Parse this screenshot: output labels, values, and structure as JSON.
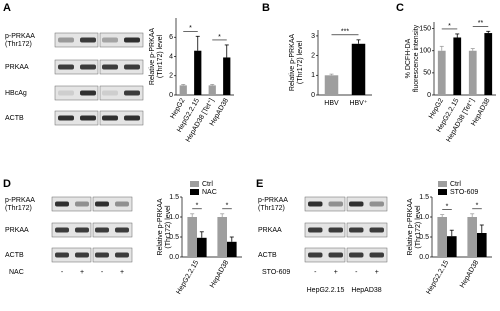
{
  "chart_data": [
    {
      "type": "bar",
      "panel": "A",
      "ylabel": [
        "Relative p-PRKAA",
        "(Thr172) level"
      ],
      "categories": [
        "HepG2",
        "HepG2.2.15",
        "HepAD38 [Tet⁺]",
        "HepAD38"
      ],
      "series": [
        {
          "colors": [
            "#9e9e9e",
            "#000000",
            "#9e9e9e",
            "#000000"
          ],
          "values": [
            1,
            4.6,
            1,
            3.9
          ],
          "errors": [
            0.1,
            1.5,
            0.1,
            1.3
          ]
        }
      ],
      "ylim": [
        0,
        8
      ],
      "yticks": [
        0,
        2,
        4,
        6
      ],
      "annotations": [
        "*",
        "*"
      ]
    },
    {
      "type": "bar",
      "panel": "B",
      "ylabel": [
        "Relative p-PRKAA",
        "(Thr172) level"
      ],
      "categories": [
        "HBV",
        "HBV⁺"
      ],
      "series": [
        {
          "colors": [
            "#9e9e9e",
            "#000000"
          ],
          "values": [
            1,
            2.6
          ],
          "errors": [
            0.06,
            0.2
          ]
        }
      ],
      "ylim": [
        0,
        3.3
      ],
      "yticks": [
        0,
        1,
        2,
        3
      ],
      "annotations": [
        "***"
      ]
    },
    {
      "type": "bar",
      "panel": "C",
      "ylabel": [
        "% DCFH-DA",
        "fluorescence intensity"
      ],
      "categories": [
        "HepG2",
        "HepG2.2.15",
        "HepAD38 [Tet⁺]",
        "HepAD38"
      ],
      "series": [
        {
          "colors": [
            "#9e9e9e",
            "#000000",
            "#9e9e9e",
            "#000000"
          ],
          "values": [
            100,
            130,
            100,
            140
          ],
          "errors": [
            10,
            8,
            5,
            4
          ]
        }
      ],
      "ylim": [
        0,
        165
      ],
      "yticks": [
        0,
        50,
        100,
        150
      ],
      "annotations": [
        "*",
        "**"
      ]
    },
    {
      "type": "bar",
      "panel": "D",
      "ylabel": [
        "Relative p-PRKAA",
        "(Thr172) level"
      ],
      "categories": [
        "HepG2.2.15",
        "HepAD38"
      ],
      "series": [
        {
          "name": "Ctrl",
          "color": "#9e9e9e",
          "values": [
            1,
            1
          ],
          "errors": [
            0.08,
            0.08
          ]
        },
        {
          "name": "NAC",
          "color": "#000000",
          "values": [
            0.48,
            0.38
          ],
          "errors": [
            0.15,
            0.12
          ]
        }
      ],
      "ylim": [
        0,
        1.5
      ],
      "yticks": [
        {
          "value": 0,
          "label": "0.0"
        },
        {
          "value": 0.5,
          "label": "0.5"
        },
        {
          "value": 1,
          "label": "1.0"
        },
        {
          "value": 1.5,
          "label": "1.5"
        }
      ],
      "annotations": [
        "*",
        "*"
      ]
    },
    {
      "type": "bar",
      "panel": "E",
      "ylabel": [
        "Relative p-PRKAA",
        "(Thr172) level"
      ],
      "categories": [
        "HepG2.2.15",
        "HepAD38"
      ],
      "series": [
        {
          "name": "Ctrl",
          "color": "#9e9e9e",
          "values": [
            1,
            1
          ],
          "errors": [
            0.06,
            0.08
          ]
        },
        {
          "name": "STO-609",
          "color": "#000000",
          "values": [
            0.52,
            0.6
          ],
          "errors": [
            0.15,
            0.2
          ]
        }
      ],
      "ylim": [
        0,
        1.5
      ],
      "yticks": [
        {
          "value": 0,
          "label": "0.0"
        },
        {
          "value": 0.5,
          "label": "0.5"
        },
        {
          "value": 1,
          "label": "1.0"
        },
        {
          "value": 1.5,
          "label": "1.5"
        }
      ],
      "annotations": [
        "*",
        "*"
      ]
    }
  ],
  "blots": [
    {
      "rows": [
        [
          "p-PRKAA",
          "(Thr172)"
        ],
        [
          "PRKAA"
        ],
        [
          "HBcAg"
        ],
        [
          "ACTB"
        ]
      ]
    },
    {
      "rows": [
        [
          "p-PRKAA",
          "(Thr172)"
        ],
        [
          "PRKAA"
        ],
        [
          "ACTB"
        ]
      ],
      "treatment": "NAC",
      "signs": [
        "-",
        "+",
        "-",
        "+"
      ]
    },
    {
      "rows": [
        [
          "p-PRKAA",
          "(Thr172)"
        ],
        [
          "PRKAA"
        ],
        [
          "ACTB"
        ]
      ],
      "treatment": "STO-609",
      "signs": [
        "-",
        "+",
        "-",
        "+"
      ],
      "groups": [
        "HepG2.2.15",
        "HepAD38"
      ]
    }
  ]
}
